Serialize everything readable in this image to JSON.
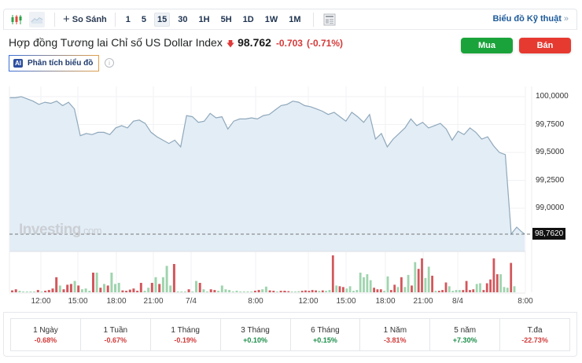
{
  "toolbar": {
    "chart_type_icons": [
      {
        "name": "candlestick-icon",
        "active": false
      },
      {
        "name": "area-chart-icon",
        "active": true
      }
    ],
    "compare_label": "So Sánh",
    "timeframes": [
      {
        "label": "1",
        "active": false
      },
      {
        "label": "5",
        "active": false
      },
      {
        "label": "15",
        "active": true
      },
      {
        "label": "30",
        "active": false
      },
      {
        "label": "1H",
        "active": false
      },
      {
        "label": "5H",
        "active": false
      },
      {
        "label": "1D",
        "active": false
      },
      {
        "label": "1W",
        "active": false
      },
      {
        "label": "1M",
        "active": false
      }
    ],
    "layout_icon": "layout-icon",
    "tech_link": "Biểu đồ Kỹ thuật",
    "tech_link_arrow": "»"
  },
  "header": {
    "title": "Hợp đồng Tương lai Chỉ số US Dollar Index",
    "direction_icon": "down-arrow-icon",
    "price": "98.762",
    "change": "-0.703",
    "change_pct": "(-0.71%)",
    "buy_label": "Mua",
    "sell_label": "Bán",
    "ai_badge": "AI",
    "ai_label": "Phân tích biểu đồ",
    "info_icon": "i"
  },
  "colors": {
    "accent_link": "#1d5a9a",
    "buy": "#1aa33a",
    "sell": "#e63a30",
    "negative": "#d23b3b",
    "positive": "#1c8f4a",
    "area_fill": "#e3edf6",
    "line": "#8fa8bb",
    "vol_up": "#9fd4ae",
    "vol_down": "#d2575c"
  },
  "chart": {
    "watermark": "Investing",
    "watermark_suffix": ".com",
    "current_price_label": "98,7620"
  },
  "chart_data": {
    "type": "area",
    "title": "Hợp đồng Tương lai Chỉ số US Dollar Index",
    "interval": "15",
    "y_ticks": [
      "100,0000",
      "99,7500",
      "99,5000",
      "99,2500",
      "99,0000"
    ],
    "ylim": [
      98.7,
      100.05
    ],
    "x_ticks": [
      "12:00",
      "15:00",
      "18:00",
      "21:00",
      "7/4",
      "8:00",
      "12:00",
      "15:00",
      "18:00",
      "21:00",
      "8/4",
      "8:00"
    ],
    "current_price": 98.762,
    "series": [
      {
        "name": "price",
        "x_index": [
          0,
          3,
          6,
          9,
          12,
          15,
          18,
          21,
          24,
          27,
          30,
          33,
          36,
          39,
          42,
          45,
          48,
          51,
          54,
          57,
          60,
          63,
          66,
          69,
          72,
          75,
          78,
          81,
          84,
          87,
          90,
          93,
          96,
          99,
          102,
          105,
          108,
          111,
          114,
          117,
          120,
          123,
          126,
          129,
          132,
          135,
          138,
          141,
          144,
          147,
          150,
          153,
          156,
          159,
          162,
          165,
          168,
          171,
          174,
          177,
          180,
          183,
          186,
          189,
          192,
          195,
          198,
          201,
          204,
          207,
          210,
          213,
          216,
          219,
          222,
          225,
          228,
          231,
          234,
          237,
          240,
          243,
          246,
          249,
          252,
          255
        ],
        "values": [
          99.99,
          99.99,
          100.0,
          99.98,
          99.96,
          99.93,
          99.95,
          99.94,
          99.96,
          99.92,
          99.95,
          99.89,
          99.65,
          99.67,
          99.66,
          99.68,
          99.68,
          99.66,
          99.72,
          99.74,
          99.72,
          99.78,
          99.79,
          99.76,
          99.68,
          99.64,
          99.61,
          99.58,
          99.61,
          99.55,
          99.83,
          99.82,
          99.77,
          99.78,
          99.85,
          99.81,
          99.82,
          99.71,
          99.78,
          99.8,
          99.8,
          99.81,
          99.8,
          99.83,
          99.84,
          99.88,
          99.92,
          99.93,
          99.96,
          99.95,
          99.92,
          99.91,
          99.89,
          99.87,
          99.84,
          99.86,
          99.82,
          99.78,
          99.86,
          99.82,
          99.77,
          99.84,
          99.62,
          99.67,
          99.55,
          99.62,
          99.67,
          99.72,
          99.8,
          99.74,
          99.77,
          99.72,
          99.74,
          99.76,
          99.71,
          99.61,
          99.69,
          99.66,
          99.72,
          99.68,
          99.62,
          99.64,
          99.56,
          99.5,
          99.48,
          98.77
        ]
      }
    ],
    "volume": {
      "note": "relative heights 0-1, color up/down",
      "bars": [
        [
          0.05,
          "d"
        ],
        [
          0.08,
          "d"
        ],
        [
          0.04,
          "u"
        ],
        [
          0.02,
          "u"
        ],
        [
          0.02,
          "u"
        ],
        [
          0.02,
          "u"
        ],
        [
          0.02,
          "u"
        ],
        [
          0.06,
          "d"
        ],
        [
          0.02,
          "u"
        ],
        [
          0.04,
          "d"
        ],
        [
          0.06,
          "d"
        ],
        [
          0.1,
          "d"
        ],
        [
          0.4,
          "d"
        ],
        [
          0.18,
          "u"
        ],
        [
          0.08,
          "d"
        ],
        [
          0.2,
          "d"
        ],
        [
          0.22,
          "d"
        ],
        [
          0.3,
          "u"
        ],
        [
          0.18,
          "d"
        ],
        [
          0.08,
          "u"
        ],
        [
          0.1,
          "u"
        ],
        [
          0.04,
          "u"
        ],
        [
          0.52,
          "d"
        ],
        [
          0.52,
          "u"
        ],
        [
          0.12,
          "d"
        ],
        [
          0.22,
          "u"
        ],
        [
          0.18,
          "d"
        ],
        [
          0.52,
          "u"
        ],
        [
          0.22,
          "u"
        ],
        [
          0.25,
          "u"
        ],
        [
          0.05,
          "d"
        ],
        [
          0.04,
          "d"
        ],
        [
          0.07,
          "d"
        ],
        [
          0.1,
          "d"
        ],
        [
          0.04,
          "d"
        ],
        [
          0.25,
          "d"
        ],
        [
          0.04,
          "u"
        ],
        [
          0.12,
          "u"
        ],
        [
          0.25,
          "d"
        ],
        [
          0.4,
          "u"
        ],
        [
          0.22,
          "d"
        ],
        [
          0.4,
          "u"
        ],
        [
          0.7,
          "u"
        ],
        [
          0.18,
          "u"
        ],
        [
          0.75,
          "d"
        ],
        [
          0.02,
          "u"
        ],
        [
          0.02,
          "u"
        ],
        [
          0.02,
          "u"
        ],
        [
          0.08,
          "d"
        ],
        [
          0.02,
          "u"
        ],
        [
          0.3,
          "u"
        ],
        [
          0.25,
          "d"
        ],
        [
          0.08,
          "u"
        ],
        [
          0.02,
          "u"
        ],
        [
          0.08,
          "d"
        ],
        [
          0.06,
          "d"
        ],
        [
          0.04,
          "u"
        ],
        [
          0.18,
          "u"
        ],
        [
          0.08,
          "u"
        ],
        [
          0.06,
          "u"
        ],
        [
          0.02,
          "u"
        ],
        [
          0.04,
          "u"
        ],
        [
          0.02,
          "u"
        ],
        [
          0.02,
          "u"
        ],
        [
          0.02,
          "u"
        ],
        [
          0.02,
          "u"
        ],
        [
          0.04,
          "d"
        ],
        [
          0.06,
          "d"
        ],
        [
          0.08,
          "u"
        ],
        [
          0.15,
          "u"
        ],
        [
          0.05,
          "d"
        ],
        [
          0.04,
          "d"
        ],
        [
          0.02,
          "u"
        ],
        [
          0.04,
          "d"
        ],
        [
          0.04,
          "d"
        ]
      ],
      "bars2": [
        [
          0.03,
          "d"
        ],
        [
          0.03,
          "d"
        ],
        [
          0.02,
          "u"
        ],
        [
          0.02,
          "u"
        ],
        [
          0.03,
          "u"
        ],
        [
          0.04,
          "d"
        ],
        [
          0.05,
          "d"
        ],
        [
          0.04,
          "d"
        ],
        [
          0.06,
          "d"
        ],
        [
          0.05,
          "d"
        ],
        [
          0.04,
          "u"
        ],
        [
          0.05,
          "d"
        ],
        [
          0.04,
          "u"
        ],
        [
          0.06,
          "u"
        ],
        [
          0.98,
          "d"
        ],
        [
          0.18,
          "u"
        ],
        [
          0.16,
          "d"
        ],
        [
          0.14,
          "d"
        ],
        [
          0.1,
          "u"
        ],
        [
          0.16,
          "u"
        ],
        [
          0.04,
          "u"
        ],
        [
          0.06,
          "u"
        ],
        [
          0.52,
          "u"
        ],
        [
          0.4,
          "u"
        ],
        [
          0.48,
          "u"
        ],
        [
          0.32,
          "u"
        ],
        [
          0.12,
          "d"
        ],
        [
          0.08,
          "d"
        ],
        [
          0.08,
          "d"
        ],
        [
          0.04,
          "u"
        ],
        [
          0.42,
          "u"
        ],
        [
          0.06,
          "d"
        ],
        [
          0.2,
          "d"
        ],
        [
          0.14,
          "u"
        ],
        [
          0.4,
          "d"
        ],
        [
          0.14,
          "u"
        ],
        [
          0.46,
          "u"
        ],
        [
          0.18,
          "d"
        ],
        [
          0.8,
          "u"
        ],
        [
          0.62,
          "d"
        ],
        [
          0.9,
          "d"
        ],
        [
          0.38,
          "u"
        ],
        [
          0.68,
          "u"
        ],
        [
          0.44,
          "d"
        ],
        [
          0.04,
          "u"
        ],
        [
          0.04,
          "d"
        ],
        [
          0.06,
          "d"
        ],
        [
          0.26,
          "d"
        ],
        [
          0.16,
          "u"
        ],
        [
          0.04,
          "u"
        ],
        [
          0.06,
          "u"
        ],
        [
          0.06,
          "u"
        ],
        [
          0.06,
          "d"
        ],
        [
          0.3,
          "d"
        ],
        [
          0.06,
          "d"
        ],
        [
          0.08,
          "d"
        ],
        [
          0.22,
          "u"
        ],
        [
          0.24,
          "u"
        ],
        [
          0.06,
          "d"
        ],
        [
          0.24,
          "d"
        ],
        [
          0.34,
          "d"
        ],
        [
          0.9,
          "d"
        ],
        [
          0.48,
          "d"
        ],
        [
          0.48,
          "u"
        ],
        [
          0.14,
          "u"
        ],
        [
          0.12,
          "u"
        ],
        [
          0.78,
          "d"
        ],
        [
          0.16,
          "u"
        ]
      ]
    }
  },
  "performance": [
    {
      "label": "1 Ngày",
      "value": "-0.68%",
      "sign": "neg"
    },
    {
      "label": "1 Tuần",
      "value": "-0.67%",
      "sign": "neg"
    },
    {
      "label": "1 Tháng",
      "value": "-0.19%",
      "sign": "neg"
    },
    {
      "label": "3 Tháng",
      "value": "+0.10%",
      "sign": "pos"
    },
    {
      "label": "6 Tháng",
      "value": "+0.15%",
      "sign": "pos"
    },
    {
      "label": "1 Năm",
      "value": "-3.81%",
      "sign": "neg"
    },
    {
      "label": "5 năm",
      "value": "+7.30%",
      "sign": "pos"
    },
    {
      "label": "T.đa",
      "value": "-22.73%",
      "sign": "neg"
    }
  ]
}
